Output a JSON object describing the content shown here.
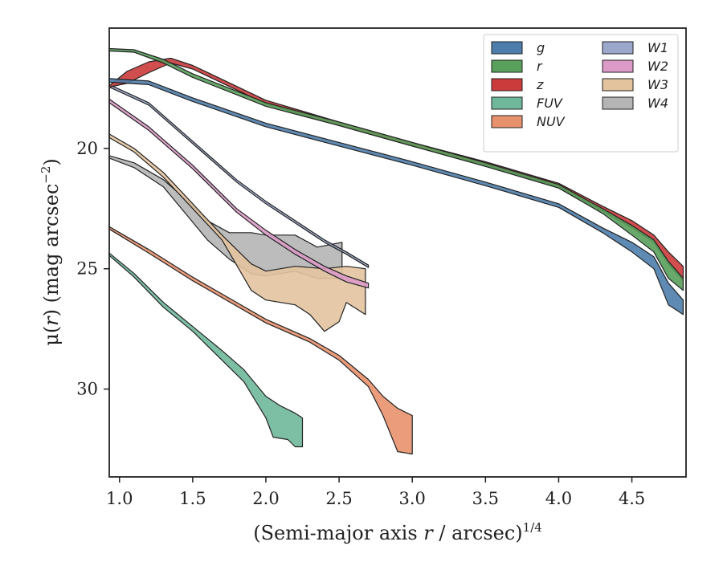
{
  "chart_data": {
    "type": "area",
    "title": "",
    "xlabel": "(Semi-major axis r / arcsec)",
    "xlabel_parts": [
      "(Semi-major axis ",
      "r",
      " / arcsec)",
      "1/4"
    ],
    "ylabel": "μ(r) (mag arcsec⁻²)",
    "ylabel_parts": [
      "μ(",
      "r",
      ") (mag arcsec",
      "−2",
      ")"
    ],
    "xlim": [
      0.93,
      4.87
    ],
    "ylim": [
      33.65,
      15.0
    ],
    "y_inverted": true,
    "xticks": [
      1.0,
      1.5,
      2.0,
      2.5,
      3.0,
      3.5,
      4.0,
      4.5
    ],
    "xtick_labels": [
      "1.0",
      "1.5",
      "2.0",
      "2.5",
      "3.0",
      "3.5",
      "4.0",
      "4.5"
    ],
    "yticks": [
      20,
      25,
      30
    ],
    "ytick_labels": [
      "20",
      "25",
      "30"
    ],
    "grid": false,
    "legend_position": "top-right",
    "legend_columns": 2,
    "series": [
      {
        "name": "g",
        "color": "#4c7dab",
        "upper": [
          [
            0.93,
            17.1
          ],
          [
            1.2,
            17.2
          ],
          [
            1.5,
            17.9
          ],
          [
            2.0,
            18.95
          ],
          [
            2.5,
            19.75
          ],
          [
            3.0,
            20.55
          ],
          [
            3.5,
            21.4
          ],
          [
            4.0,
            22.3
          ],
          [
            4.3,
            23.3
          ],
          [
            4.5,
            23.9
          ],
          [
            4.65,
            24.5
          ],
          [
            4.75,
            25.6
          ],
          [
            4.85,
            26.3
          ]
        ],
        "lower": [
          [
            0.93,
            17.25
          ],
          [
            1.2,
            17.35
          ],
          [
            1.5,
            18.05
          ],
          [
            2.0,
            19.1
          ],
          [
            2.5,
            19.9
          ],
          [
            3.0,
            20.7
          ],
          [
            3.5,
            21.55
          ],
          [
            4.0,
            22.45
          ],
          [
            4.3,
            23.5
          ],
          [
            4.5,
            24.3
          ],
          [
            4.65,
            25.0
          ],
          [
            4.75,
            26.5
          ],
          [
            4.85,
            26.9
          ]
        ]
      },
      {
        "name": "r",
        "color": "#58a05b",
        "upper": [
          [
            0.93,
            15.85
          ],
          [
            1.1,
            15.9
          ],
          [
            1.3,
            16.3
          ],
          [
            1.5,
            16.9
          ],
          [
            2.0,
            18.1
          ],
          [
            2.5,
            18.9
          ],
          [
            3.0,
            19.75
          ],
          [
            3.5,
            20.6
          ],
          [
            4.0,
            21.5
          ],
          [
            4.3,
            22.5
          ],
          [
            4.5,
            23.2
          ],
          [
            4.65,
            23.8
          ],
          [
            4.75,
            24.7
          ],
          [
            4.85,
            25.4
          ]
        ],
        "lower": [
          [
            0.93,
            15.95
          ],
          [
            1.1,
            16.0
          ],
          [
            1.3,
            16.45
          ],
          [
            1.5,
            17.05
          ],
          [
            2.0,
            18.25
          ],
          [
            2.5,
            19.05
          ],
          [
            3.0,
            19.9
          ],
          [
            3.5,
            20.75
          ],
          [
            4.0,
            21.65
          ],
          [
            4.3,
            22.7
          ],
          [
            4.5,
            23.6
          ],
          [
            4.65,
            24.3
          ],
          [
            4.75,
            25.4
          ],
          [
            4.85,
            25.9
          ]
        ]
      },
      {
        "name": "z",
        "color": "#cc3b3b",
        "upper": [
          [
            0.93,
            17.4
          ],
          [
            1.05,
            16.8
          ],
          [
            1.2,
            16.4
          ],
          [
            1.35,
            16.25
          ],
          [
            1.5,
            16.55
          ],
          [
            2.0,
            18.0
          ],
          [
            2.5,
            18.9
          ],
          [
            3.0,
            19.75
          ],
          [
            3.5,
            20.55
          ],
          [
            4.0,
            21.45
          ],
          [
            4.3,
            22.4
          ],
          [
            4.5,
            23.0
          ],
          [
            4.65,
            23.6
          ],
          [
            4.75,
            24.3
          ],
          [
            4.85,
            24.9
          ]
        ],
        "lower": [
          [
            0.93,
            17.45
          ],
          [
            1.05,
            17.3
          ],
          [
            1.2,
            16.85
          ],
          [
            1.35,
            16.45
          ],
          [
            1.5,
            16.7
          ],
          [
            2.0,
            18.15
          ],
          [
            2.5,
            19.05
          ],
          [
            3.0,
            19.9
          ],
          [
            3.5,
            20.7
          ],
          [
            4.0,
            21.6
          ],
          [
            4.3,
            22.6
          ],
          [
            4.5,
            23.3
          ],
          [
            4.65,
            23.9
          ],
          [
            4.75,
            24.8
          ],
          [
            4.85,
            25.5
          ]
        ]
      },
      {
        "name": "FUV",
        "color": "#6fb89b",
        "upper": [
          [
            0.93,
            24.35
          ],
          [
            1.1,
            25.2
          ],
          [
            1.3,
            26.4
          ],
          [
            1.5,
            27.4
          ],
          [
            1.7,
            28.4
          ],
          [
            1.85,
            29.2
          ],
          [
            2.0,
            30.3
          ],
          [
            2.1,
            30.7
          ],
          [
            2.2,
            31.0
          ],
          [
            2.25,
            31.2
          ]
        ],
        "lower": [
          [
            0.93,
            24.45
          ],
          [
            1.1,
            25.35
          ],
          [
            1.3,
            26.6
          ],
          [
            1.5,
            27.6
          ],
          [
            1.7,
            28.8
          ],
          [
            1.85,
            29.7
          ],
          [
            2.0,
            31.2
          ],
          [
            2.05,
            32.0
          ],
          [
            2.15,
            32.1
          ],
          [
            2.2,
            32.4
          ],
          [
            2.25,
            32.4
          ]
        ]
      },
      {
        "name": "NUV",
        "color": "#e8916d",
        "upper": [
          [
            0.93,
            23.25
          ],
          [
            1.2,
            24.2
          ],
          [
            1.5,
            25.35
          ],
          [
            2.0,
            27.1
          ],
          [
            2.3,
            27.9
          ],
          [
            2.5,
            28.6
          ],
          [
            2.7,
            29.6
          ],
          [
            2.8,
            30.3
          ],
          [
            2.9,
            30.8
          ],
          [
            3.0,
            31.1
          ]
        ],
        "lower": [
          [
            0.93,
            23.35
          ],
          [
            1.2,
            24.35
          ],
          [
            1.5,
            25.5
          ],
          [
            2.0,
            27.25
          ],
          [
            2.3,
            28.05
          ],
          [
            2.5,
            28.8
          ],
          [
            2.7,
            29.9
          ],
          [
            2.8,
            31.1
          ],
          [
            2.9,
            32.6
          ],
          [
            3.0,
            32.7
          ]
        ]
      },
      {
        "name": "W1",
        "color": "#9ba8cc",
        "upper": [
          [
            0.93,
            17.35
          ],
          [
            1.2,
            18.1
          ],
          [
            1.5,
            19.7
          ],
          [
            1.8,
            21.3
          ],
          [
            2.0,
            22.2
          ],
          [
            2.2,
            23.0
          ],
          [
            2.4,
            23.8
          ],
          [
            2.55,
            24.3
          ],
          [
            2.7,
            24.85
          ]
        ],
        "lower": [
          [
            0.93,
            17.45
          ],
          [
            1.2,
            18.2
          ],
          [
            1.5,
            19.8
          ],
          [
            1.8,
            21.4
          ],
          [
            2.0,
            22.3
          ],
          [
            2.2,
            23.1
          ],
          [
            2.4,
            23.9
          ],
          [
            2.55,
            24.4
          ],
          [
            2.7,
            24.95
          ]
        ]
      },
      {
        "name": "W2",
        "color": "#dc9ac7",
        "upper": [
          [
            0.93,
            17.95
          ],
          [
            1.2,
            19.1
          ],
          [
            1.5,
            20.7
          ],
          [
            1.8,
            22.5
          ],
          [
            2.0,
            23.4
          ],
          [
            2.2,
            24.2
          ],
          [
            2.4,
            24.9
          ],
          [
            2.55,
            25.3
          ],
          [
            2.7,
            25.6
          ]
        ],
        "lower": [
          [
            0.93,
            18.1
          ],
          [
            1.2,
            19.25
          ],
          [
            1.5,
            20.85
          ],
          [
            1.8,
            22.65
          ],
          [
            2.0,
            23.6
          ],
          [
            2.2,
            24.4
          ],
          [
            2.4,
            25.1
          ],
          [
            2.55,
            25.55
          ],
          [
            2.7,
            25.8
          ]
        ]
      },
      {
        "name": "W3",
        "color": "#e2c39e",
        "upper": [
          [
            0.93,
            19.4
          ],
          [
            1.1,
            20.0
          ],
          [
            1.3,
            21.0
          ],
          [
            1.5,
            22.3
          ],
          [
            1.7,
            23.6
          ],
          [
            1.9,
            24.8
          ],
          [
            2.0,
            25.1
          ],
          [
            2.2,
            24.9
          ],
          [
            2.4,
            25.0
          ],
          [
            2.55,
            24.9
          ],
          [
            2.68,
            25.0
          ]
        ],
        "lower": [
          [
            0.93,
            19.55
          ],
          [
            1.1,
            20.15
          ],
          [
            1.3,
            21.2
          ],
          [
            1.5,
            22.5
          ],
          [
            1.7,
            23.8
          ],
          [
            1.9,
            25.9
          ],
          [
            2.0,
            26.3
          ],
          [
            2.2,
            26.5
          ],
          [
            2.3,
            26.9
          ],
          [
            2.4,
            27.6
          ],
          [
            2.5,
            27.2
          ],
          [
            2.55,
            26.4
          ],
          [
            2.68,
            26.9
          ]
        ]
      },
      {
        "name": "W4",
        "color": "#b5b5b5",
        "upper": [
          [
            0.93,
            20.3
          ],
          [
            1.1,
            20.6
          ],
          [
            1.3,
            21.3
          ],
          [
            1.45,
            22.1
          ],
          [
            1.6,
            23.0
          ],
          [
            1.75,
            23.5
          ],
          [
            1.9,
            23.5
          ],
          [
            2.0,
            23.6
          ],
          [
            2.2,
            23.6
          ],
          [
            2.35,
            24.1
          ],
          [
            2.52,
            23.9
          ]
        ],
        "lower": [
          [
            0.93,
            20.4
          ],
          [
            1.1,
            20.8
          ],
          [
            1.3,
            21.6
          ],
          [
            1.45,
            22.7
          ],
          [
            1.6,
            23.8
          ],
          [
            1.75,
            24.6
          ],
          [
            1.9,
            25.2
          ],
          [
            2.0,
            25.3
          ],
          [
            2.2,
            25.1
          ],
          [
            2.35,
            25.4
          ],
          [
            2.52,
            25.4
          ]
        ]
      }
    ]
  }
}
